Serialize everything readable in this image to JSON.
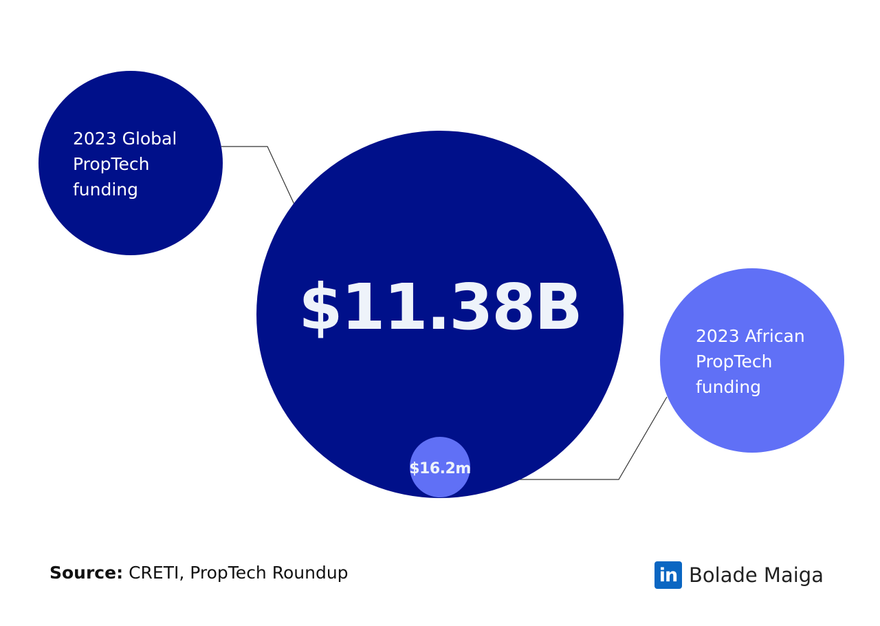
{
  "chart_data": {
    "type": "bubble",
    "series": [
      {
        "label": [
          "2023 Global",
          "PropTech",
          "funding"
        ],
        "value": 11380000000.0,
        "display": "$11.38B"
      },
      {
        "label": [
          "2023 African",
          "PropTech",
          "funding"
        ],
        "value": 16200000.0,
        "display": "$16.2m"
      }
    ]
  },
  "source": {
    "key": "Source:",
    "text": "CRETI, PropTech Roundup"
  },
  "brand": {
    "logo_text": "in",
    "name": "Bolade Maiga"
  },
  "colors": {
    "navy": "#00108A",
    "periwinkle": "#6070F6",
    "value_text": "#EEF3FA",
    "label_text": "#FFFFFF",
    "connector": "#333333",
    "linkedin": "#0A66C2"
  }
}
